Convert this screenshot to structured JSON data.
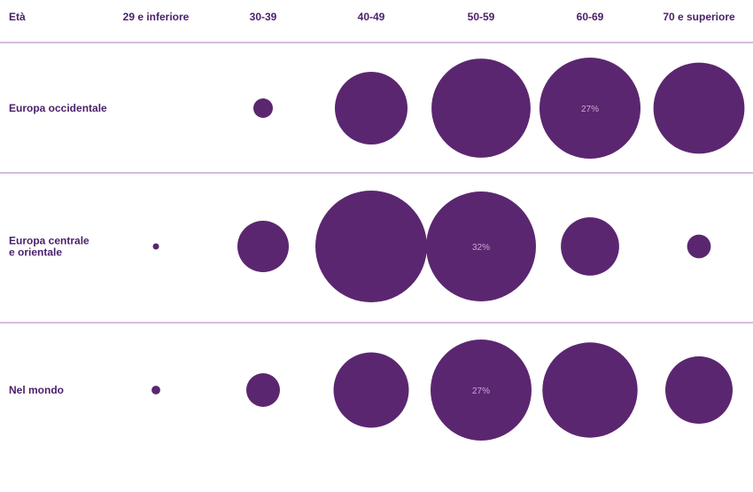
{
  "chart_data": {
    "type": "bubble-matrix",
    "corner_label": "Età",
    "columns": [
      "29 e inferiore",
      "30-39",
      "40-49",
      "50-59",
      "60-69",
      "70 e superiore"
    ],
    "rows": [
      {
        "label_lines": [
          "Europa occidentale"
        ],
        "values": [
          0,
          1,
          14,
          26,
          27,
          22
        ],
        "labeled_index": 4,
        "value_label": "27%"
      },
      {
        "label_lines": [
          "Europa centrale",
          "e orientale"
        ],
        "values": [
          0.1,
          7,
          33,
          32,
          9,
          1.5
        ],
        "labeled_index": 3,
        "value_label": "32%"
      },
      {
        "label_lines": [
          "Nel mondo"
        ],
        "values": [
          0.2,
          3,
          15,
          27,
          24,
          12
        ],
        "labeled_index": 3,
        "value_label": "27%"
      }
    ],
    "colors": {
      "bubble": "#5b2670",
      "text": "#4a1f6a",
      "divider": "#c9a6d6",
      "bubble_label": "#c9a6d6"
    }
  }
}
